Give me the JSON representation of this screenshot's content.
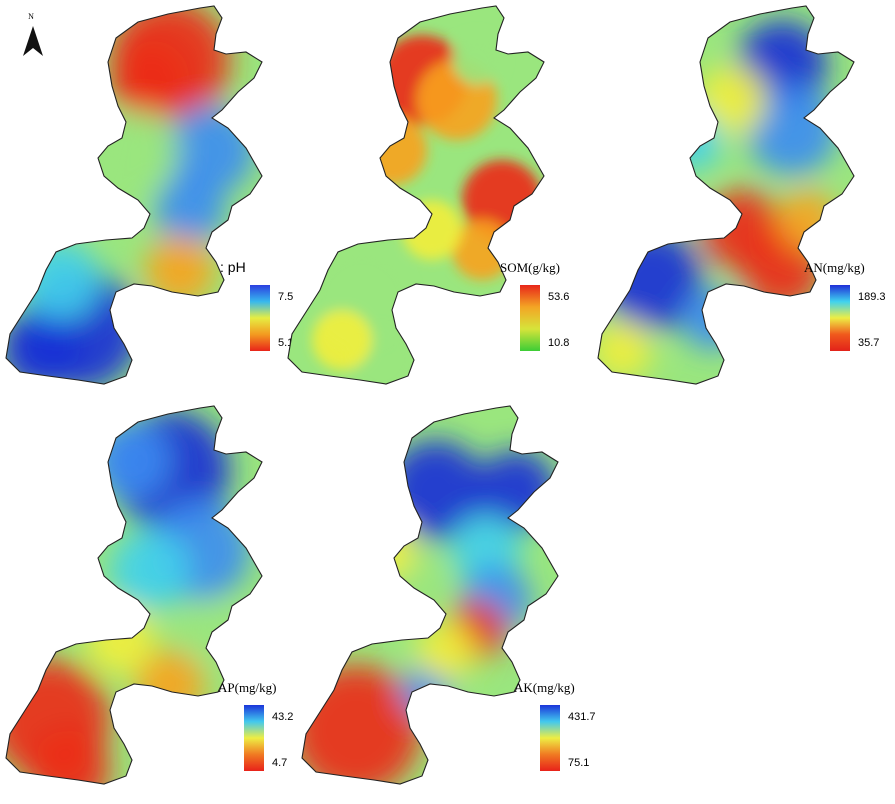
{
  "north_arrow": {
    "label": "N"
  },
  "colormap": [
    "#1a2fd6",
    "#3c8cf2",
    "#40d0ec",
    "#9ae67e",
    "#f2ee3c",
    "#f8a21e",
    "#ec2a14"
  ],
  "panels": [
    {
      "id": "ph",
      "title": "pH",
      "max": "7.5",
      "min": "5.1",
      "ramp": [
        "#2b3fe0",
        "#37b8ee",
        "#e6ee42",
        "#f39a20",
        "#e8241a"
      ],
      "hotspots": [
        {
          "v": 0.95,
          "d": "top"
        },
        {
          "v": 0.15,
          "d": "mid-right"
        },
        {
          "v": 0.2,
          "d": "mid"
        },
        {
          "v": 0.8,
          "d": "neck-right"
        },
        {
          "v": 0.1,
          "d": "bottom-left"
        }
      ]
    },
    {
      "id": "som",
      "title": "SOM(g/kg)",
      "max": "53.6",
      "min": "10.8",
      "ramp": [
        "#e8261a",
        "#f3a524",
        "#d6e43a",
        "#3ccd36"
      ]
    },
    {
      "id": "an",
      "title": "AN(mg/kg)",
      "max": "189.3",
      "min": "35.7",
      "ramp": [
        "#1f2fd8",
        "#3fd2ef",
        "#eeee44",
        "#f0591c",
        "#e2221a"
      ]
    },
    {
      "id": "ap",
      "title": "AP(mg/kg)",
      "max": "43.2",
      "min": "4.7",
      "ramp": [
        "#1b35da",
        "#42c8ee",
        "#eeee44",
        "#f07a22",
        "#e8221a"
      ]
    },
    {
      "id": "ak",
      "title": "AK(mg/kg)",
      "max": "431.7",
      "min": "75.1",
      "ramp": [
        "#1b35da",
        "#42c8ee",
        "#eeee44",
        "#f07a22",
        "#e8221a"
      ]
    }
  ]
}
